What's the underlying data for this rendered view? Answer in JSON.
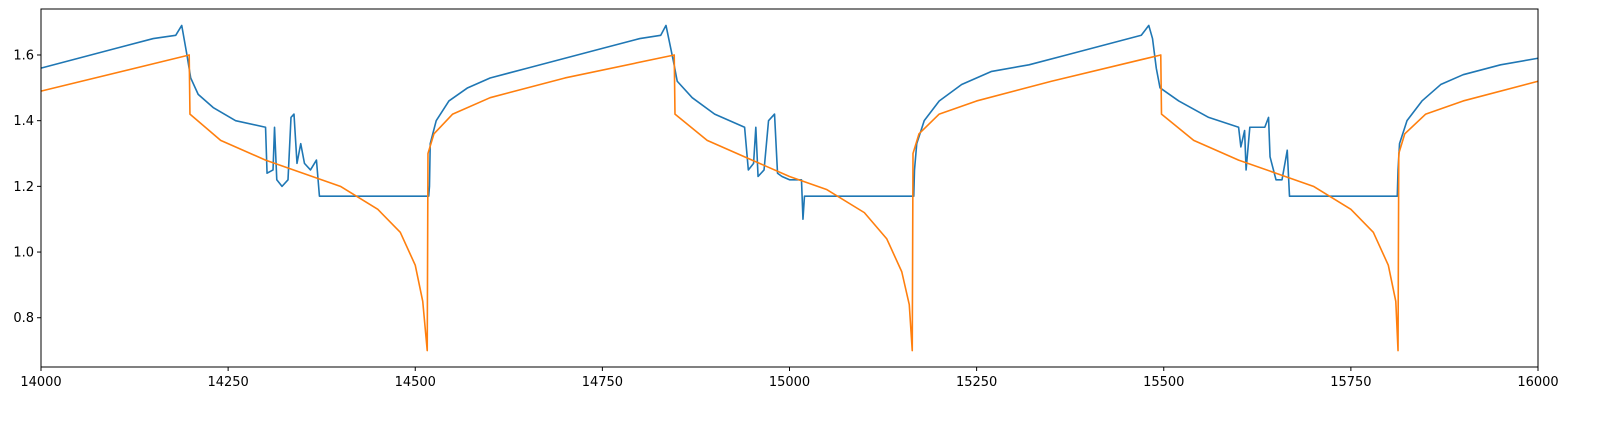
{
  "chart_data": {
    "type": "line",
    "title": "",
    "xlabel": "",
    "ylabel": "",
    "xlim": [
      14000,
      16000
    ],
    "ylim": [
      0.65,
      1.74
    ],
    "grid": false,
    "legend": "none",
    "x_ticks": [
      14000,
      14250,
      14500,
      14750,
      15000,
      15250,
      15500,
      15750,
      16000
    ],
    "x_tick_labels": [
      "14000",
      "14250",
      "14500",
      "14750",
      "15000",
      "15250",
      "15500",
      "15750",
      "16000"
    ],
    "y_ticks": [
      0.8,
      1.0,
      1.2,
      1.4,
      1.6
    ],
    "y_tick_labels": [
      "0.8",
      "1.0",
      "1.2",
      "1.4",
      "1.6"
    ],
    "series": [
      {
        "color": "#1f77b4",
        "points": [
          [
            14000,
            1.56
          ],
          [
            14050,
            1.59
          ],
          [
            14100,
            1.62
          ],
          [
            14150,
            1.65
          ],
          [
            14180,
            1.66
          ],
          [
            14188,
            1.69
          ],
          [
            14195,
            1.6
          ],
          [
            14200,
            1.53
          ],
          [
            14210,
            1.48
          ],
          [
            14230,
            1.44
          ],
          [
            14260,
            1.4
          ],
          [
            14300,
            1.38
          ],
          [
            14302,
            1.24
          ],
          [
            14310,
            1.25
          ],
          [
            14312,
            1.38
          ],
          [
            14315,
            1.22
          ],
          [
            14322,
            1.2
          ],
          [
            14330,
            1.22
          ],
          [
            14334,
            1.41
          ],
          [
            14338,
            1.42
          ],
          [
            14342,
            1.27
          ],
          [
            14347,
            1.33
          ],
          [
            14352,
            1.27
          ],
          [
            14360,
            1.25
          ],
          [
            14368,
            1.28
          ],
          [
            14372,
            1.17
          ],
          [
            14400,
            1.17
          ],
          [
            14450,
            1.17
          ],
          [
            14518,
            1.17
          ],
          [
            14519,
            1.2
          ],
          [
            14520,
            1.33
          ],
          [
            14528,
            1.4
          ],
          [
            14545,
            1.46
          ],
          [
            14570,
            1.5
          ],
          [
            14600,
            1.53
          ],
          [
            14650,
            1.56
          ],
          [
            14700,
            1.59
          ],
          [
            14750,
            1.62
          ],
          [
            14800,
            1.65
          ],
          [
            14828,
            1.66
          ],
          [
            14835,
            1.69
          ],
          [
            14845,
            1.58
          ],
          [
            14850,
            1.52
          ],
          [
            14870,
            1.47
          ],
          [
            14900,
            1.42
          ],
          [
            14940,
            1.38
          ],
          [
            14945,
            1.25
          ],
          [
            14952,
            1.27
          ],
          [
            14955,
            1.38
          ],
          [
            14958,
            1.23
          ],
          [
            14966,
            1.25
          ],
          [
            14972,
            1.4
          ],
          [
            14980,
            1.42
          ],
          [
            14984,
            1.24
          ],
          [
            14990,
            1.23
          ],
          [
            15000,
            1.22
          ],
          [
            15016,
            1.22
          ],
          [
            15018,
            1.1
          ],
          [
            15020,
            1.17
          ],
          [
            15050,
            1.17
          ],
          [
            15100,
            1.17
          ],
          [
            15166,
            1.17
          ],
          [
            15167,
            1.25
          ],
          [
            15170,
            1.33
          ],
          [
            15180,
            1.4
          ],
          [
            15200,
            1.46
          ],
          [
            15230,
            1.51
          ],
          [
            15270,
            1.55
          ],
          [
            15320,
            1.57
          ],
          [
            15370,
            1.6
          ],
          [
            15420,
            1.63
          ],
          [
            15470,
            1.66
          ],
          [
            15480,
            1.69
          ],
          [
            15485,
            1.65
          ],
          [
            15490,
            1.56
          ],
          [
            15495,
            1.5
          ],
          [
            15520,
            1.46
          ],
          [
            15560,
            1.41
          ],
          [
            15600,
            1.38
          ],
          [
            15603,
            1.32
          ],
          [
            15608,
            1.37
          ],
          [
            15610,
            1.25
          ],
          [
            15615,
            1.38
          ],
          [
            15635,
            1.38
          ],
          [
            15640,
            1.41
          ],
          [
            15642,
            1.29
          ],
          [
            15650,
            1.22
          ],
          [
            15658,
            1.22
          ],
          [
            15665,
            1.31
          ],
          [
            15668,
            1.17
          ],
          [
            15700,
            1.17
          ],
          [
            15750,
            1.17
          ],
          [
            15812,
            1.17
          ],
          [
            15813,
            1.25
          ],
          [
            15815,
            1.33
          ],
          [
            15825,
            1.4
          ],
          [
            15845,
            1.46
          ],
          [
            15870,
            1.51
          ],
          [
            15900,
            1.54
          ],
          [
            15950,
            1.57
          ],
          [
            16000,
            1.59
          ]
        ]
      },
      {
        "color": "#ff7f0e",
        "points": [
          [
            14000,
            1.49
          ],
          [
            14198,
            1.6
          ],
          [
            14199,
            1.42
          ],
          [
            14240,
            1.34
          ],
          [
            14300,
            1.28
          ],
          [
            14350,
            1.24
          ],
          [
            14400,
            1.2
          ],
          [
            14450,
            1.13
          ],
          [
            14480,
            1.06
          ],
          [
            14500,
            0.96
          ],
          [
            14510,
            0.85
          ],
          [
            14516,
            0.7
          ],
          [
            14517,
            1.3
          ],
          [
            14525,
            1.36
          ],
          [
            14550,
            1.42
          ],
          [
            14600,
            1.47
          ],
          [
            14700,
            1.53
          ],
          [
            14846,
            1.6
          ],
          [
            14847,
            1.42
          ],
          [
            14890,
            1.34
          ],
          [
            14950,
            1.28
          ],
          [
            15000,
            1.23
          ],
          [
            15050,
            1.19
          ],
          [
            15100,
            1.12
          ],
          [
            15130,
            1.04
          ],
          [
            15150,
            0.94
          ],
          [
            15160,
            0.84
          ],
          [
            15164,
            0.7
          ],
          [
            15165,
            1.3
          ],
          [
            15173,
            1.36
          ],
          [
            15200,
            1.42
          ],
          [
            15250,
            1.46
          ],
          [
            15350,
            1.52
          ],
          [
            15496,
            1.6
          ],
          [
            15497,
            1.42
          ],
          [
            15540,
            1.34
          ],
          [
            15600,
            1.28
          ],
          [
            15650,
            1.24
          ],
          [
            15700,
            1.2
          ],
          [
            15750,
            1.13
          ],
          [
            15780,
            1.06
          ],
          [
            15800,
            0.96
          ],
          [
            15810,
            0.85
          ],
          [
            15813,
            0.7
          ],
          [
            15814,
            1.3
          ],
          [
            15822,
            1.36
          ],
          [
            15850,
            1.42
          ],
          [
            15900,
            1.46
          ],
          [
            16000,
            1.52
          ]
        ]
      }
    ]
  }
}
